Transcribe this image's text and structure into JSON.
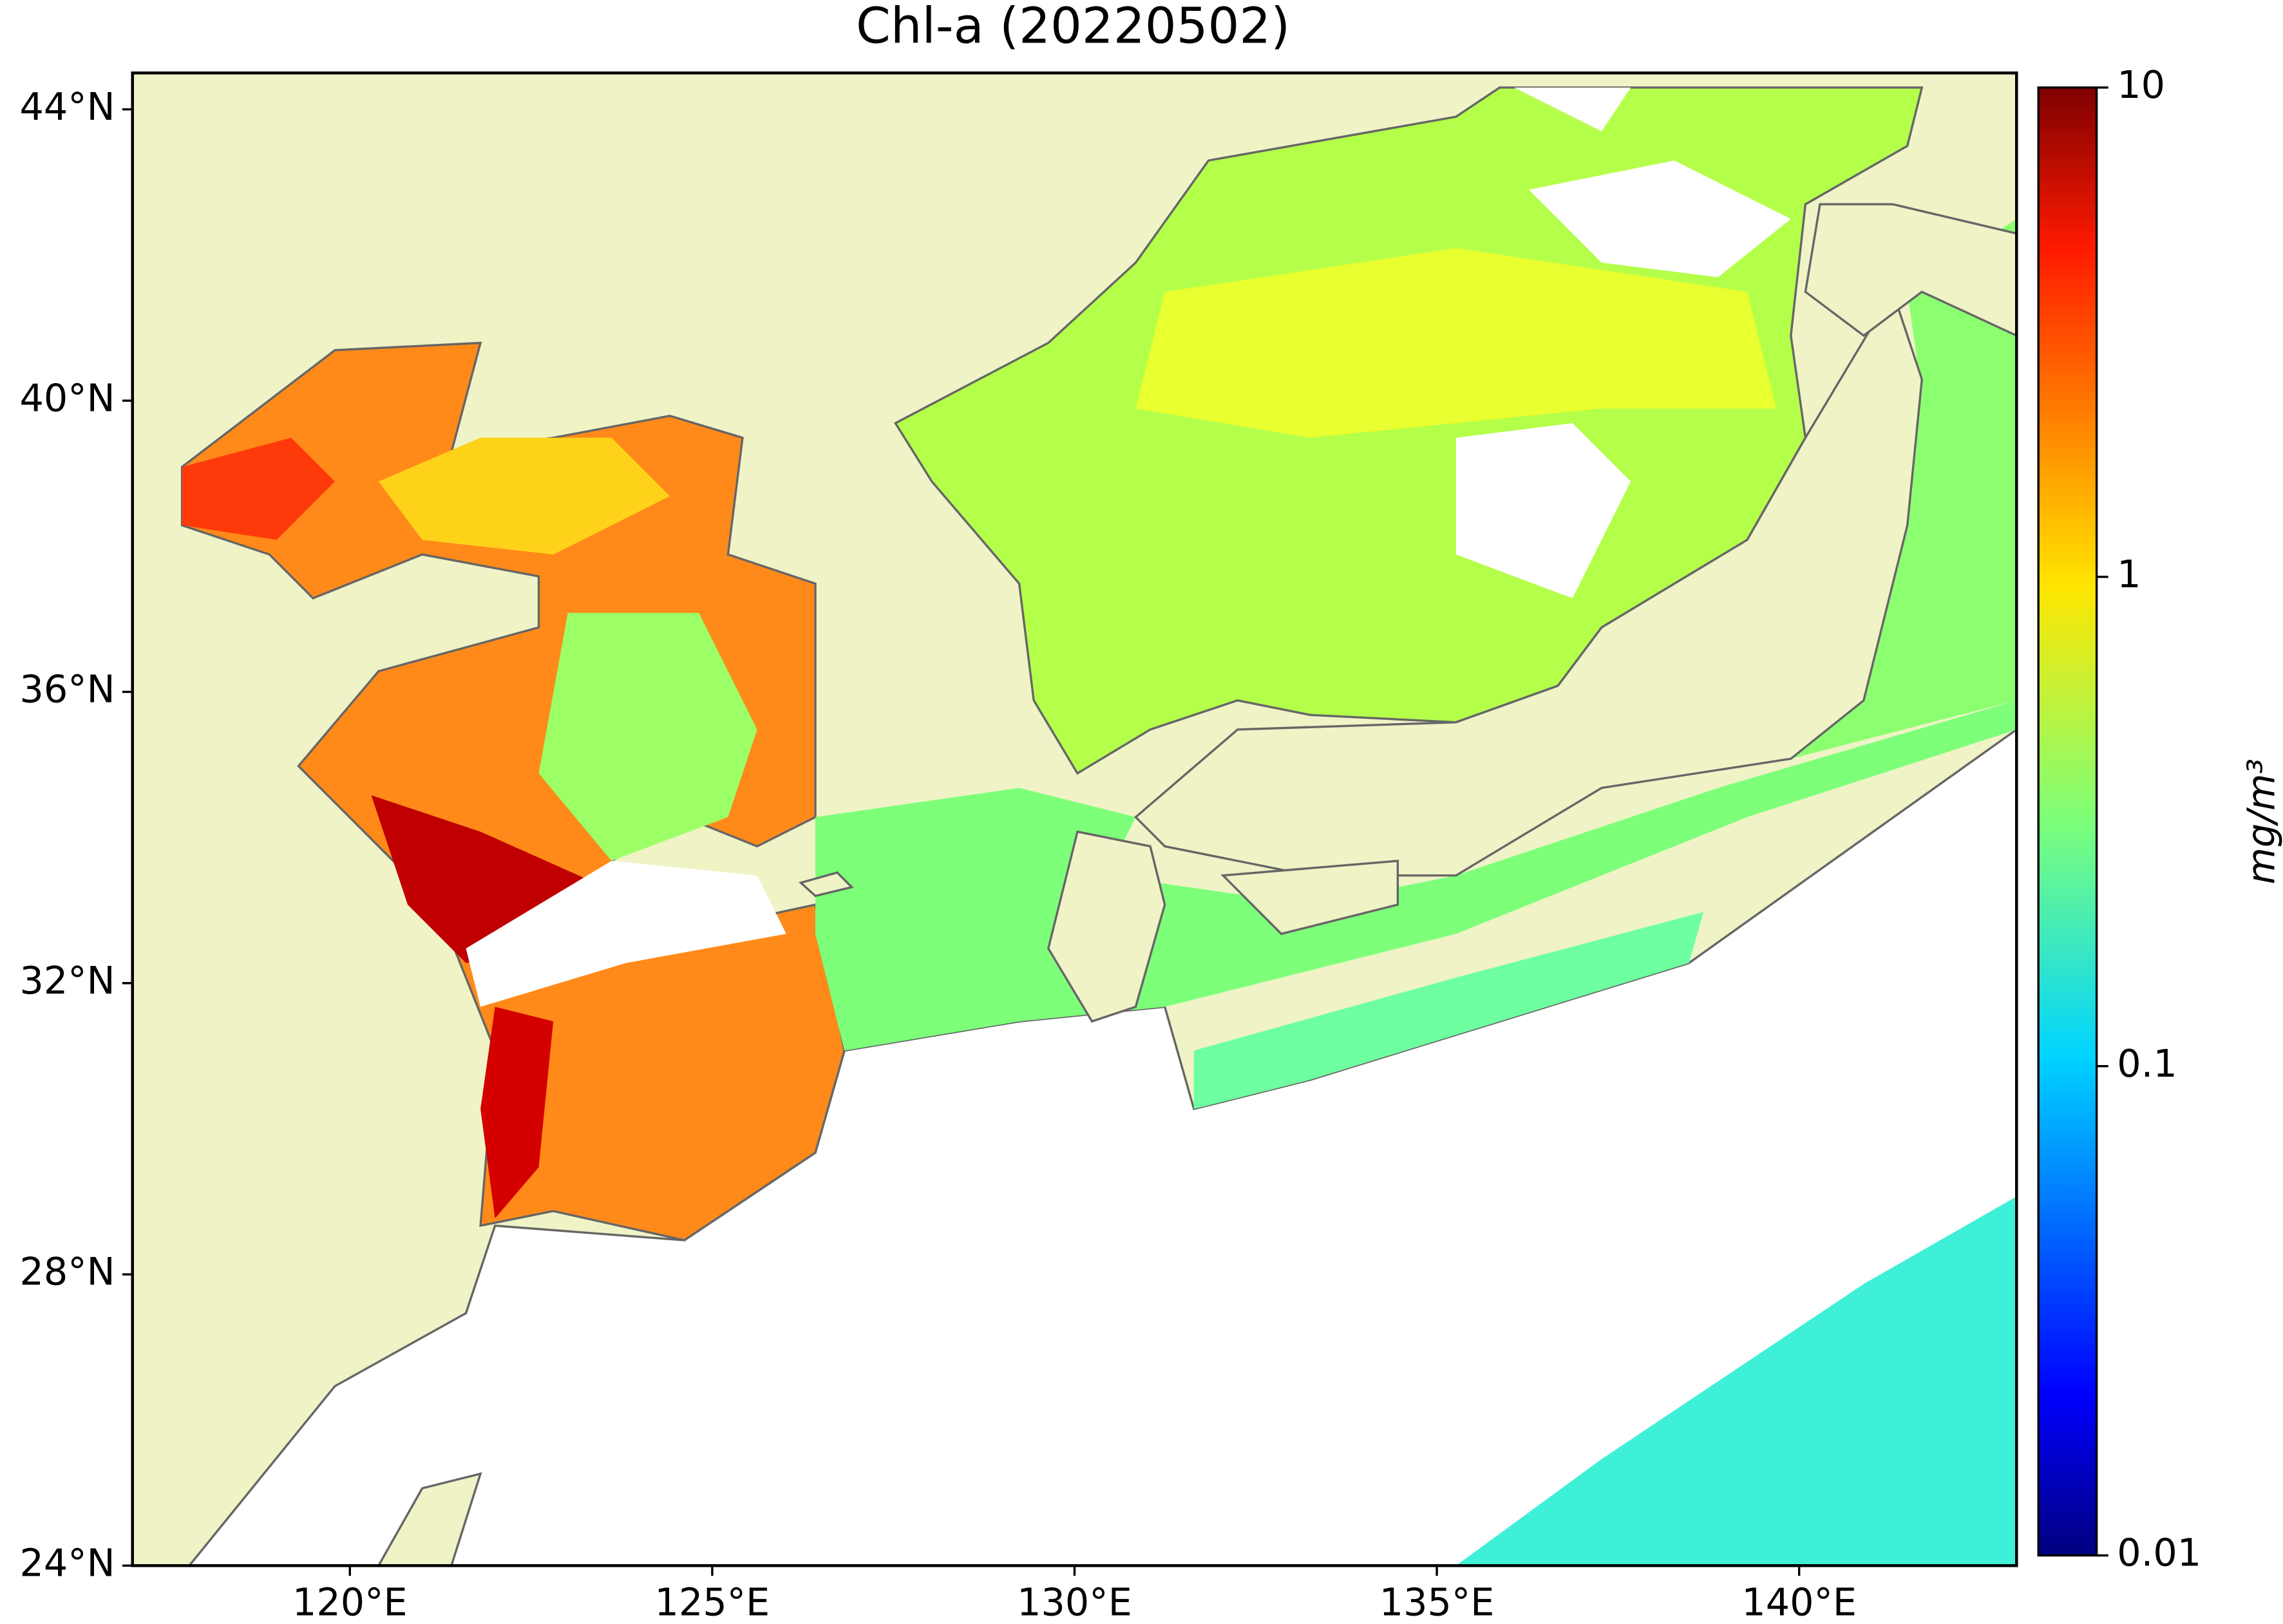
{
  "chart_data": {
    "type": "map",
    "title": "Chl-a (20220502)",
    "xlim": [
      117,
      143
    ],
    "ylim": [
      24,
      44.5
    ],
    "xticks": [
      {
        "value": 120,
        "label": "120°E"
      },
      {
        "value": 125,
        "label": "125°E"
      },
      {
        "value": 130,
        "label": "130°E"
      },
      {
        "value": 135,
        "label": "135°E"
      },
      {
        "value": 140,
        "label": "140°E"
      }
    ],
    "yticks": [
      {
        "value": 24,
        "label": "24°N"
      },
      {
        "value": 28,
        "label": "28°N"
      },
      {
        "value": 32,
        "label": "32°N"
      },
      {
        "value": 36,
        "label": "36°N"
      },
      {
        "value": 40,
        "label": "40°N"
      },
      {
        "value": 44,
        "label": "44°N"
      }
    ],
    "colorbar": {
      "label": "mg/m³",
      "scale": "log",
      "lim": [
        0.01,
        10
      ],
      "ticks": [
        0.01,
        0.1,
        1,
        10
      ]
    }
  }
}
